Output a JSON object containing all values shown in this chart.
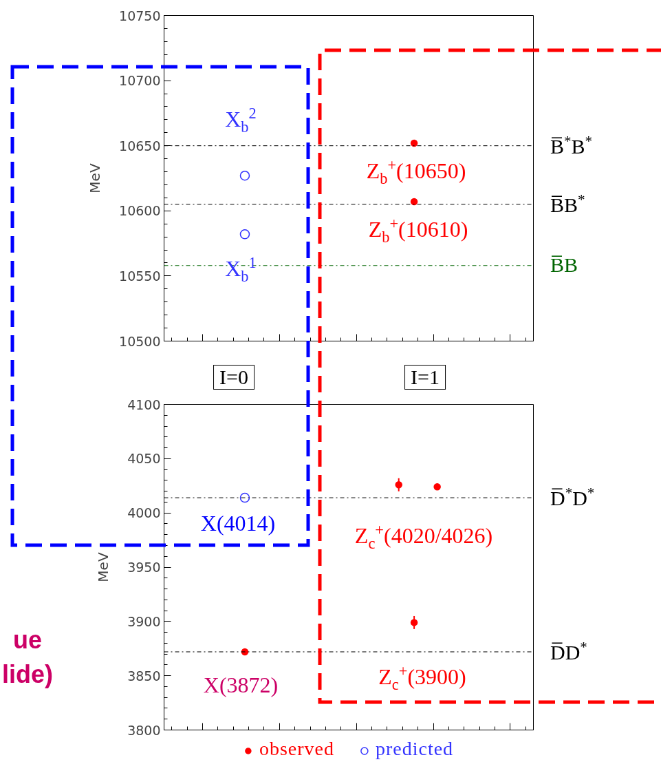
{
  "chart_data": [
    {
      "type": "scatter",
      "ylabel": "MeV",
      "ylim": [
        10500,
        10750
      ],
      "categories": [
        null,
        null,
        null,
        null,
        null,
        null,
        null,
        null,
        null,
        null,
        null,
        null,
        null,
        null,
        null,
        null,
        null,
        null,
        null,
        null,
        null,
        null,
        null,
        null,
        null,
        null,
        null,
        null,
        null,
        null,
        null,
        null,
        null,
        null,
        null,
        null,
        null,
        null,
        null,
        null,
        null,
        null,
        null,
        null,
        null,
        null,
        null,
        null
      ],
      "yticks": [
        10500,
        10550,
        10600,
        10650,
        10700,
        10750
      ],
      "grid": false,
      "marker": "circle",
      "series": [
        {
          "color": "#ff0000",
          "values": [
            null,
            null,
            null,
            null,
            null,
            null,
            null,
            null,
            null,
            null,
            null,
            null,
            null,
            null,
            null,
            null,
            null,
            null,
            null,
            null,
            null,
            null,
            null,
            null,
            null,
            null,
            null,
            null,
            null,
            null,
            null,
            null,
            10652,
            null,
            null,
            null,
            null,
            null,
            null,
            null,
            null,
            null,
            null,
            null,
            null,
            null,
            null,
            null
          ]
        },
        {
          "color": "#ff0000",
          "values": [
            null,
            null,
            null,
            null,
            null,
            null,
            null,
            null,
            null,
            null,
            null,
            null,
            null,
            null,
            null,
            null,
            null,
            null,
            null,
            null,
            null,
            null,
            null,
            null,
            null,
            null,
            null,
            null,
            null,
            null,
            null,
            null,
            10607,
            null,
            null,
            null,
            null,
            null,
            null,
            null,
            null,
            null,
            null,
            null,
            null,
            null,
            null,
            null
          ]
        },
        {
          "color": "#3333ff",
          "values": [
            null,
            null,
            null,
            null,
            null,
            null,
            null,
            null,
            null,
            null,
            10627,
            null,
            null,
            null,
            null,
            null,
            null,
            null,
            null,
            null,
            null,
            null,
            null,
            null,
            null,
            null,
            null,
            null,
            null,
            null,
            null,
            null,
            null,
            null,
            null,
            null,
            null,
            null,
            null,
            null,
            null,
            null,
            null,
            null,
            null,
            null,
            null,
            null
          ]
        },
        {
          "color": "#3333ff",
          "values": [
            null,
            null,
            null,
            null,
            null,
            null,
            null,
            null,
            null,
            null,
            10582,
            null,
            null,
            null,
            null,
            null,
            null,
            null,
            null,
            null,
            null,
            null,
            null,
            null,
            null,
            null,
            null,
            null,
            null,
            null,
            null,
            null,
            null,
            null,
            null,
            null,
            null,
            null,
            null,
            null,
            null,
            null,
            null,
            null,
            null,
            null,
            null,
            null
          ]
        }
      ],
      "ref_lines": [
        {
          "axis": "y",
          "value": 10650,
          "label": "B̅$^{*}$B$^{*}$",
          "color": "#000000",
          "line_style": "dashdot"
        },
        {
          "axis": "y",
          "value": 10605,
          "label": "B̅B$^{*}$",
          "color": "#000000",
          "line_style": "dashdot"
        },
        {
          "axis": "y",
          "value": 10558,
          "label": "B̅B",
          "color": "#006400",
          "line_style": "dashdot"
        }
      ],
      "annotations": [
        "X$_{b}$$^{2}$",
        "X$_{b}$$^{1}$",
        "Z$_{b}$$^{+}$(10650)",
        "Z$_{b}$$^{+}$(10610)",
        "I=0",
        "I=1"
      ]
    },
    {
      "type": "scatter",
      "ylabel": "MeV",
      "ylim": [
        3800,
        4100
      ],
      "categories": [
        null,
        null,
        null,
        null,
        null,
        null,
        null,
        null,
        null,
        null,
        null,
        null,
        null,
        null,
        null,
        null,
        null,
        null,
        null,
        null,
        null,
        null,
        null,
        null,
        null,
        null,
        null,
        null,
        null,
        null,
        null,
        null,
        null,
        null,
        null,
        null,
        null,
        null,
        null,
        null,
        null,
        null,
        null,
        null,
        null,
        null,
        null,
        null
      ],
      "yticks": [
        3800,
        3850,
        3900,
        3950,
        4000,
        4050,
        4100
      ],
      "grid": false,
      "marker": "circle",
      "legend": "bottom",
      "series": [
        {
          "name": "observed",
          "color": "#ff0000",
          "values": [
            null,
            null,
            null,
            null,
            null,
            null,
            null,
            null,
            null,
            null,
            3872,
            null,
            null,
            null,
            null,
            null,
            null,
            null,
            null,
            null,
            null,
            null,
            null,
            null,
            null,
            null,
            null,
            null,
            null,
            null,
            4026,
            null,
            3899,
            null,
            null,
            4024,
            null,
            null,
            null,
            null,
            null,
            null,
            null,
            null,
            null,
            null,
            null,
            null
          ],
          "errors": [
            null,
            null,
            null,
            null,
            null,
            null,
            null,
            null,
            null,
            null,
            null,
            null,
            null,
            null,
            null,
            null,
            null,
            null,
            null,
            null,
            null,
            null,
            null,
            null,
            null,
            null,
            null,
            null,
            null,
            null,
            6,
            null,
            6,
            null,
            null,
            3,
            null,
            null,
            null,
            null,
            null,
            null,
            null,
            null,
            null,
            null,
            null,
            null
          ]
        },
        {
          "name": "predicted",
          "color": "#3333ff",
          "values": [
            null,
            null,
            null,
            null,
            null,
            null,
            null,
            null,
            null,
            null,
            4014,
            null,
            null,
            null,
            null,
            null,
            null,
            null,
            null,
            null,
            null,
            null,
            null,
            null,
            null,
            null,
            null,
            null,
            null,
            null,
            null,
            null,
            null,
            null,
            null,
            null,
            null,
            null,
            null,
            null,
            null,
            null,
            null,
            null,
            null,
            null,
            null,
            null
          ]
        }
      ],
      "ref_lines": [
        {
          "axis": "y",
          "value": 4014,
          "label": "D̅$^{*}$D$^{*}$",
          "color": "#000000",
          "line_style": "dashdot"
        },
        {
          "axis": "y",
          "value": 3872,
          "label": "D̅D$^{*}$",
          "color": "#000000",
          "line_style": "dashdot"
        }
      ],
      "annotations": [
        "X(4014)",
        "Z$_{c}$$^{+}$(4020/4026)",
        "X(3872)",
        "Z$_{c}$$^{+}$(3900)",
        "ue",
        "lide)"
      ]
    }
  ]
}
